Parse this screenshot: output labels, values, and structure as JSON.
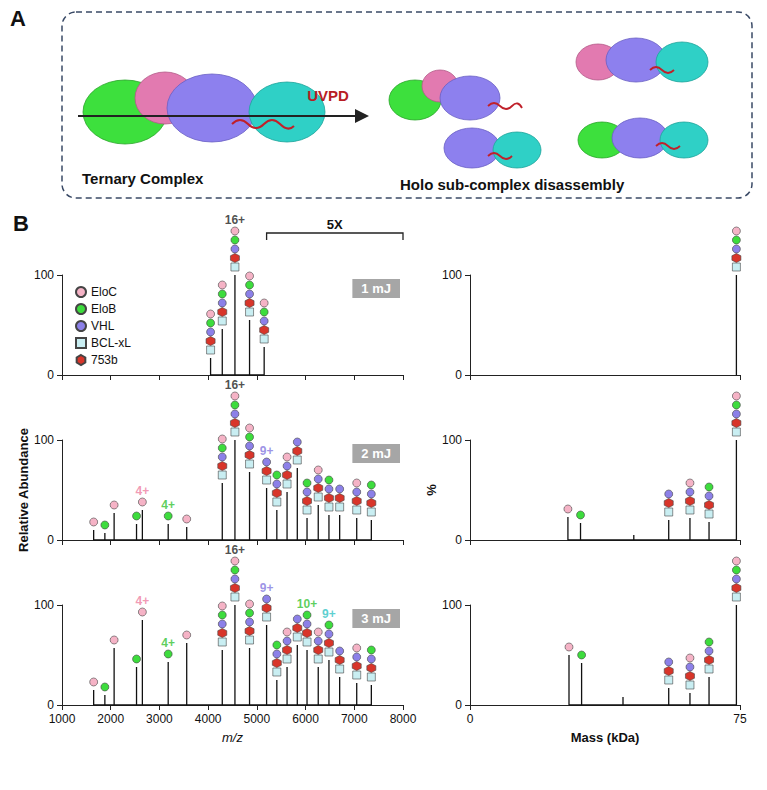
{
  "panels": {
    "A": {
      "letter": "A",
      "left_label": "Ternary Complex",
      "arrow_label": "UVPD",
      "right_label": "Holo sub-complex disassembly"
    },
    "B": {
      "letter": "B",
      "magnification": {
        "label": "5X",
        "from": 5200,
        "to": 8000
      }
    }
  },
  "species_key": [
    {
      "name": "EloC",
      "color": "#f5b3c6",
      "marker": "circle"
    },
    {
      "name": "EloB",
      "color": "#3ddc3d",
      "marker": "circle"
    },
    {
      "name": "VHL",
      "color": "#8c80e8",
      "marker": "circle"
    },
    {
      "name": "BCL-xL",
      "color": "#c9eef2",
      "marker": "square"
    },
    {
      "name": "753b",
      "color": "#d8352a",
      "marker": "hexagon"
    }
  ],
  "chart_data": [
    {
      "type": "stick",
      "title": "1 mJ",
      "color": "#111111",
      "legend": "top-left",
      "tick_labels": "y",
      "xlim": [
        1000,
        8000
      ],
      "xticks": [
        1000,
        2000,
        3000,
        4000,
        5000,
        6000,
        7000,
        8000
      ],
      "ylim": [
        0,
        100
      ],
      "yticks": [
        0,
        100
      ],
      "x": [
        4050,
        4290,
        4550,
        4850,
        5150
      ],
      "values": [
        17,
        46,
        100,
        55,
        28
      ],
      "species": [
        [
          "BCL-xL",
          "753b",
          "VHL",
          "EloB",
          "EloC"
        ],
        [
          "BCL-xL",
          "753b",
          "VHL",
          "EloB",
          "EloC"
        ],
        [
          "BCL-xL",
          "753b",
          "VHL",
          "EloB",
          "EloC"
        ],
        [
          "BCL-xL",
          "753b",
          "VHL",
          "EloB",
          "EloC"
        ],
        [
          "BCL-xL",
          "753b",
          "VHL",
          "EloB",
          "EloC"
        ]
      ],
      "annotations": [
        {
          "text": "16+",
          "x": 4550,
          "color": "#222222"
        }
      ]
    },
    {
      "type": "stick",
      "color": "#111111",
      "tick_labels": "y",
      "xlim": [
        0,
        75
      ],
      "xticks": [
        0,
        75
      ],
      "ylim": [
        0,
        100
      ],
      "yticks": [
        0,
        100
      ],
      "x": [
        74
      ],
      "values": [
        100
      ],
      "species": [
        [
          "BCL-xL",
          "753b",
          "VHL",
          "EloB",
          "EloC"
        ]
      ]
    },
    {
      "type": "stick",
      "title": "2 mJ",
      "color": "#111111",
      "tick_labels": "y",
      "ylabel": "Relative Abundance",
      "xlim": [
        1000,
        8000
      ],
      "xticks": [
        1000,
        2000,
        3000,
        4000,
        5000,
        6000,
        7000,
        8000
      ],
      "ylim": [
        0,
        100
      ],
      "yticks": [
        0,
        100
      ],
      "x": [
        1650,
        1880,
        2070,
        2530,
        2650,
        3180,
        3560,
        4290,
        4550,
        4850,
        5200,
        5410,
        5620,
        5830,
        6030,
        6260,
        6480,
        6700,
        7050,
        7350
      ],
      "values": [
        10,
        7,
        27,
        16,
        30,
        16,
        13,
        57,
        100,
        68,
        52,
        30,
        48,
        72,
        22,
        35,
        25,
        25,
        22,
        20
      ],
      "species": [
        [
          "EloC"
        ],
        [
          "EloB"
        ],
        [
          "EloC"
        ],
        [
          "EloB"
        ],
        [
          "EloC"
        ],
        [
          "EloB"
        ],
        [
          "EloC"
        ],
        [
          "BCL-xL",
          "753b",
          "VHL",
          "EloB",
          "EloC"
        ],
        [
          "BCL-xL",
          "753b",
          "VHL",
          "EloB",
          "EloC"
        ],
        [
          "BCL-xL",
          "753b",
          "VHL",
          "EloB",
          "EloC"
        ],
        [
          "BCL-xL",
          "753b",
          "VHL"
        ],
        [
          "BCL-xL",
          "753b",
          "VHL",
          "EloB"
        ],
        [
          "BCL-xL",
          "753b",
          "VHL",
          "EloC"
        ],
        [
          "BCL-xL",
          "753b",
          "VHL"
        ],
        [
          "BCL-xL",
          "753b",
          "VHL",
          "EloB"
        ],
        [
          "BCL-xL",
          "753b",
          "VHL",
          "EloC"
        ],
        [
          "BCL-xL",
          "753b",
          "VHL",
          "EloB"
        ],
        [
          "BCL-xL",
          "753b",
          "VHL"
        ],
        [
          "BCL-xL",
          "753b",
          "VHL",
          "EloC"
        ],
        [
          "BCL-xL",
          "753b",
          "VHL",
          "EloB"
        ]
      ],
      "annotations": [
        {
          "text": "4+",
          "x": 2650,
          "color": "#ee7fa2"
        },
        {
          "text": "4+",
          "x": 3180,
          "color": "#33c233"
        },
        {
          "text": "16+",
          "x": 4550,
          "color": "#222222"
        },
        {
          "text": "9+",
          "x": 5200,
          "color": "#8478e0"
        }
      ]
    },
    {
      "type": "stick",
      "color": "#111111",
      "tick_labels": "y",
      "ylabel": "%",
      "xlim": [
        0,
        75
      ],
      "xticks": [
        0,
        75
      ],
      "ylim": [
        0,
        100
      ],
      "yticks": [
        0,
        100
      ],
      "x": [
        27.2,
        30.7,
        45.5,
        55.2,
        61.1,
        66.4,
        74
      ],
      "values": [
        23,
        17,
        5,
        20,
        22,
        18,
        100
      ],
      "species": [
        [
          "EloC"
        ],
        [
          "EloB"
        ],
        [],
        [
          "BCL-xL",
          "753b",
          "VHL"
        ],
        [
          "BCL-xL",
          "753b",
          "VHL",
          "EloC"
        ],
        [
          "BCL-xL",
          "753b",
          "VHL",
          "EloB"
        ],
        [
          "BCL-xL",
          "753b",
          "VHL",
          "EloB",
          "EloC"
        ]
      ]
    },
    {
      "type": "stick",
      "title": "3 mJ",
      "color": "#111111",
      "tick_labels": true,
      "xlabel": "m/z",
      "xlim": [
        1000,
        8000
      ],
      "xticks": [
        1000,
        2000,
        3000,
        4000,
        5000,
        6000,
        7000,
        8000
      ],
      "ylim": [
        0,
        100
      ],
      "yticks": [
        0,
        100
      ],
      "x": [
        1650,
        1880,
        2070,
        2530,
        2650,
        3180,
        3560,
        4290,
        4550,
        4850,
        5200,
        5410,
        5620,
        5830,
        6030,
        6260,
        6480,
        6700,
        7050,
        7350
      ],
      "values": [
        15,
        10,
        57,
        38,
        85,
        43,
        62,
        55,
        100,
        57,
        80,
        25,
        38,
        60,
        55,
        38,
        45,
        28,
        22,
        20
      ],
      "species": [
        [
          "EloC"
        ],
        [
          "EloB"
        ],
        [
          "EloC"
        ],
        [
          "EloB"
        ],
        [
          "EloC"
        ],
        [
          "EloB"
        ],
        [
          "EloC"
        ],
        [
          "BCL-xL",
          "753b",
          "VHL",
          "EloB",
          "EloC"
        ],
        [
          "BCL-xL",
          "753b",
          "VHL",
          "EloB",
          "EloC"
        ],
        [
          "BCL-xL",
          "753b",
          "VHL",
          "EloB",
          "EloC"
        ],
        [
          "BCL-xL",
          "753b",
          "VHL"
        ],
        [
          "BCL-xL",
          "753b",
          "VHL",
          "EloB"
        ],
        [
          "BCL-xL",
          "753b",
          "VHL",
          "EloC"
        ],
        [
          "BCL-xL",
          "753b",
          "VHL"
        ],
        [
          "BCL-xL",
          "753b",
          "VHL",
          "EloB"
        ],
        [
          "BCL-xL",
          "753b",
          "VHL",
          "EloC"
        ],
        [
          "BCL-xL",
          "753b",
          "VHL",
          "EloB"
        ],
        [
          "BCL-xL",
          "753b",
          "VHL"
        ],
        [
          "BCL-xL",
          "753b",
          "VHL",
          "EloC"
        ],
        [
          "BCL-xL",
          "753b",
          "VHL",
          "EloB"
        ]
      ],
      "annotations": [
        {
          "text": "4+",
          "x": 2650,
          "color": "#ee7fa2"
        },
        {
          "text": "4+",
          "x": 3180,
          "color": "#33c233"
        },
        {
          "text": "16+",
          "x": 4550,
          "color": "#222222"
        },
        {
          "text": "9+",
          "x": 5200,
          "color": "#8478e0"
        },
        {
          "text": "10+",
          "x": 6030,
          "color": "#33c233"
        },
        {
          "text": "9+",
          "x": 6480,
          "color": "#33c4c4"
        }
      ]
    },
    {
      "type": "stick",
      "color": "#111111",
      "tick_labels": true,
      "xlabel": "Mass (kDa)",
      "xlim": [
        0,
        75
      ],
      "xticks": [
        0,
        75
      ],
      "ylim": [
        0,
        100
      ],
      "yticks": [
        0,
        100
      ],
      "x": [
        27.5,
        31,
        42.5,
        55.2,
        61.1,
        66.4,
        74
      ],
      "values": [
        50,
        42,
        8,
        17,
        12,
        28,
        100
      ],
      "species": [
        [
          "EloC"
        ],
        [
          "EloB"
        ],
        [],
        [
          "BCL-xL",
          "753b",
          "VHL"
        ],
        [
          "BCL-xL",
          "753b",
          "VHL",
          "EloC"
        ],
        [
          "BCL-xL",
          "753b",
          "VHL",
          "EloB"
        ],
        [
          "BCL-xL",
          "753b",
          "VHL",
          "EloB",
          "EloC"
        ]
      ]
    }
  ]
}
